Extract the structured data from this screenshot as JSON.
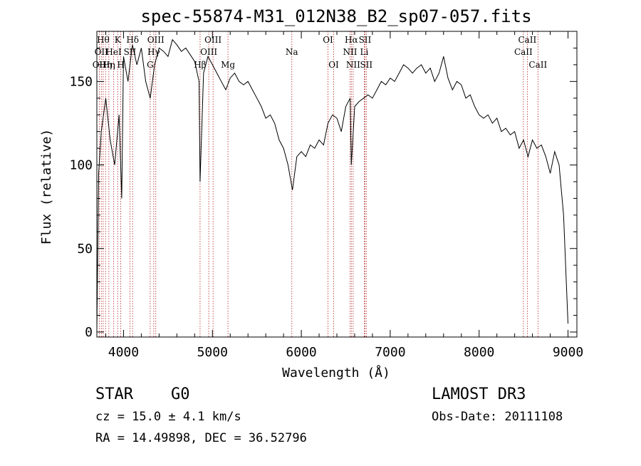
{
  "chart_data": {
    "type": "line",
    "title": "spec-55874-M31_012N38_B2_sp07-057.fits",
    "xlabel": "Wavelength (Å)",
    "ylabel": "Flux (relative)",
    "xlim": [
      3700,
      9100
    ],
    "ylim": [
      -3,
      180
    ],
    "xticks": [
      4000,
      5000,
      6000,
      7000,
      8000,
      9000
    ],
    "yticks": [
      0,
      50,
      100,
      150
    ],
    "series": [
      {
        "name": "flux",
        "x": [
          3700,
          3720,
          3750,
          3800,
          3850,
          3900,
          3950,
          3980,
          4000,
          4050,
          4100,
          4150,
          4200,
          4250,
          4300,
          4350,
          4400,
          4450,
          4500,
          4550,
          4600,
          4650,
          4700,
          4750,
          4800,
          4850,
          4861,
          4900,
          4950,
          5000,
          5050,
          5100,
          5150,
          5200,
          5250,
          5300,
          5350,
          5400,
          5450,
          5500,
          5550,
          5600,
          5650,
          5700,
          5750,
          5800,
          5850,
          5900,
          5950,
          6000,
          6050,
          6100,
          6150,
          6200,
          6250,
          6300,
          6350,
          6400,
          6450,
          6500,
          6550,
          6563,
          6600,
          6650,
          6700,
          6750,
          6800,
          6850,
          6900,
          6950,
          7000,
          7050,
          7100,
          7150,
          7200,
          7250,
          7300,
          7350,
          7400,
          7450,
          7500,
          7550,
          7600,
          7650,
          7700,
          7750,
          7800,
          7850,
          7900,
          7950,
          8000,
          8050,
          8100,
          8150,
          8200,
          8250,
          8300,
          8350,
          8400,
          8450,
          8500,
          8550,
          8600,
          8650,
          8700,
          8750,
          8800,
          8850,
          8900,
          8950,
          9000
        ],
        "y": [
          2,
          95,
          120,
          140,
          115,
          100,
          130,
          80,
          165,
          150,
          172,
          160,
          170,
          150,
          140,
          160,
          170,
          168,
          165,
          175,
          172,
          168,
          170,
          166,
          162,
          150,
          90,
          155,
          165,
          160,
          155,
          150,
          145,
          152,
          155,
          150,
          148,
          150,
          145,
          140,
          135,
          128,
          130,
          125,
          115,
          110,
          100,
          85,
          105,
          108,
          105,
          112,
          110,
          115,
          112,
          125,
          130,
          128,
          120,
          135,
          140,
          100,
          135,
          138,
          140,
          142,
          140,
          145,
          150,
          148,
          152,
          150,
          155,
          160,
          158,
          155,
          158,
          160,
          155,
          158,
          150,
          155,
          165,
          152,
          145,
          150,
          148,
          140,
          142,
          135,
          130,
          128,
          130,
          125,
          128,
          120,
          122,
          118,
          120,
          110,
          115,
          105,
          115,
          110,
          112,
          105,
          95,
          108,
          100,
          70,
          5
        ]
      }
    ],
    "lines": [
      {
        "wave": 3727,
        "label": "OII",
        "row": 2
      },
      {
        "wave": 3750,
        "label": "OII",
        "row": 1
      },
      {
        "wave": 3771,
        "label": "Hθ",
        "row": 0
      },
      {
        "wave": 3798,
        "label": "Hη",
        "row": 2
      },
      {
        "wave": 3835,
        "label": "Hη",
        "row": 2
      },
      {
        "wave": 3889,
        "label": "HeI",
        "row": 1
      },
      {
        "wave": 3934,
        "label": "K",
        "row": 0
      },
      {
        "wave": 3969,
        "label": "H",
        "row": 2
      },
      {
        "wave": 4072,
        "label": "SII",
        "row": 1
      },
      {
        "wave": 4102,
        "label": "Hδ",
        "row": 0
      },
      {
        "wave": 4300,
        "label": "G",
        "row": 2
      },
      {
        "wave": 4340,
        "label": "Hγ",
        "row": 1
      },
      {
        "wave": 4363,
        "label": "OIII",
        "row": 0
      },
      {
        "wave": 4861,
        "label": "Hβ",
        "row": 2
      },
      {
        "wave": 4959,
        "label": "OIII",
        "row": 1
      },
      {
        "wave": 5007,
        "label": "OIII",
        "row": 0
      },
      {
        "wave": 5175,
        "label": "Mg",
        "row": 2
      },
      {
        "wave": 5893,
        "label": "Na",
        "row": 1
      },
      {
        "wave": 6300,
        "label": "OI",
        "row": 0
      },
      {
        "wave": 6364,
        "label": "OI",
        "row": 2
      },
      {
        "wave": 6548,
        "label": "NII",
        "row": 1
      },
      {
        "wave": 6563,
        "label": "Hα",
        "row": 0
      },
      {
        "wave": 6583,
        "label": "NII",
        "row": 2
      },
      {
        "wave": 6708,
        "label": "Li",
        "row": 1
      },
      {
        "wave": 6716,
        "label": "SII",
        "row": 0
      },
      {
        "wave": 6731,
        "label": "SII",
        "row": 2
      },
      {
        "wave": 8498,
        "label": "CaII",
        "row": 1
      },
      {
        "wave": 8542,
        "label": "CaII",
        "row": 0
      },
      {
        "wave": 8662,
        "label": "CaII",
        "row": 2
      }
    ]
  },
  "info": {
    "class_label": "STAR",
    "subclass": "G0",
    "survey": "LAMOST DR3",
    "cz": "cz = 15.0 ± 4.1 km/s",
    "obs_date": "Obs-Date: 20111108",
    "coords": "RA =  14.49898, DEC =  36.52796"
  }
}
